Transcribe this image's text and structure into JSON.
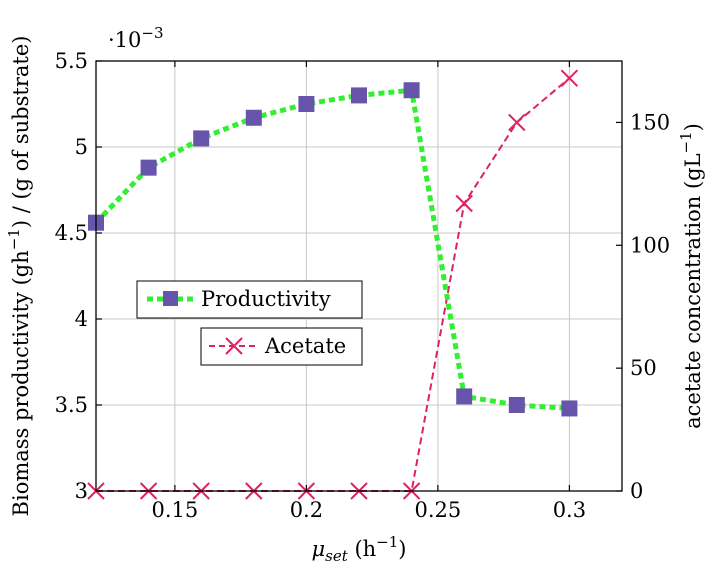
{
  "chart_data": {
    "type": "line",
    "x_axis": {
      "label_main": "μ",
      "label_sub": "set",
      "label_unit_open": " (h",
      "label_unit_exp": "−1",
      "label_unit_close": ")",
      "range": [
        0.12,
        0.32
      ],
      "ticks": [
        0.15,
        0.2,
        0.25,
        0.3
      ],
      "tick_labels": [
        "0.15",
        "0.2",
        "0.25",
        "0.3"
      ]
    },
    "y_left": {
      "label_a": "Biomass productivity (gh",
      "label_exp": "−1",
      "label_b": ") / (g of substrate)",
      "range": [
        3.0,
        5.5
      ],
      "ticks": [
        3,
        3.5,
        4,
        4.5,
        5,
        5.5
      ],
      "tick_labels": [
        "3",
        "3.5",
        "4",
        "4.5",
        "5",
        "5.5"
      ],
      "scale_base": "·10",
      "scale_exp": "−3"
    },
    "y_right": {
      "label_a": "acetate concentration (gL",
      "label_exp": "−1",
      "label_b": ")",
      "range": [
        0,
        175
      ],
      "ticks": [
        0,
        50,
        100,
        150
      ],
      "tick_labels": [
        "0",
        "50",
        "100",
        "150"
      ]
    },
    "grid": true,
    "legend_placement": "center-left",
    "series": [
      {
        "name": "Productivity",
        "axis": "left",
        "color": "#33ee33",
        "marker_color": "#6655aa",
        "marker": "square",
        "x": [
          0.12,
          0.14,
          0.16,
          0.18,
          0.2,
          0.22,
          0.24,
          0.26,
          0.28,
          0.3
        ],
        "y": [
          4.56,
          4.88,
          5.05,
          5.17,
          5.25,
          5.3,
          5.33,
          3.55,
          3.5,
          3.48
        ]
      },
      {
        "name": "Acetate",
        "axis": "right",
        "color": "#dd2266",
        "marker": "x",
        "x": [
          0.12,
          0.14,
          0.16,
          0.18,
          0.2,
          0.22,
          0.24,
          0.26,
          0.28,
          0.3
        ],
        "y": [
          0,
          0,
          0,
          0,
          0,
          0,
          0,
          117,
          150,
          168
        ]
      }
    ]
  }
}
